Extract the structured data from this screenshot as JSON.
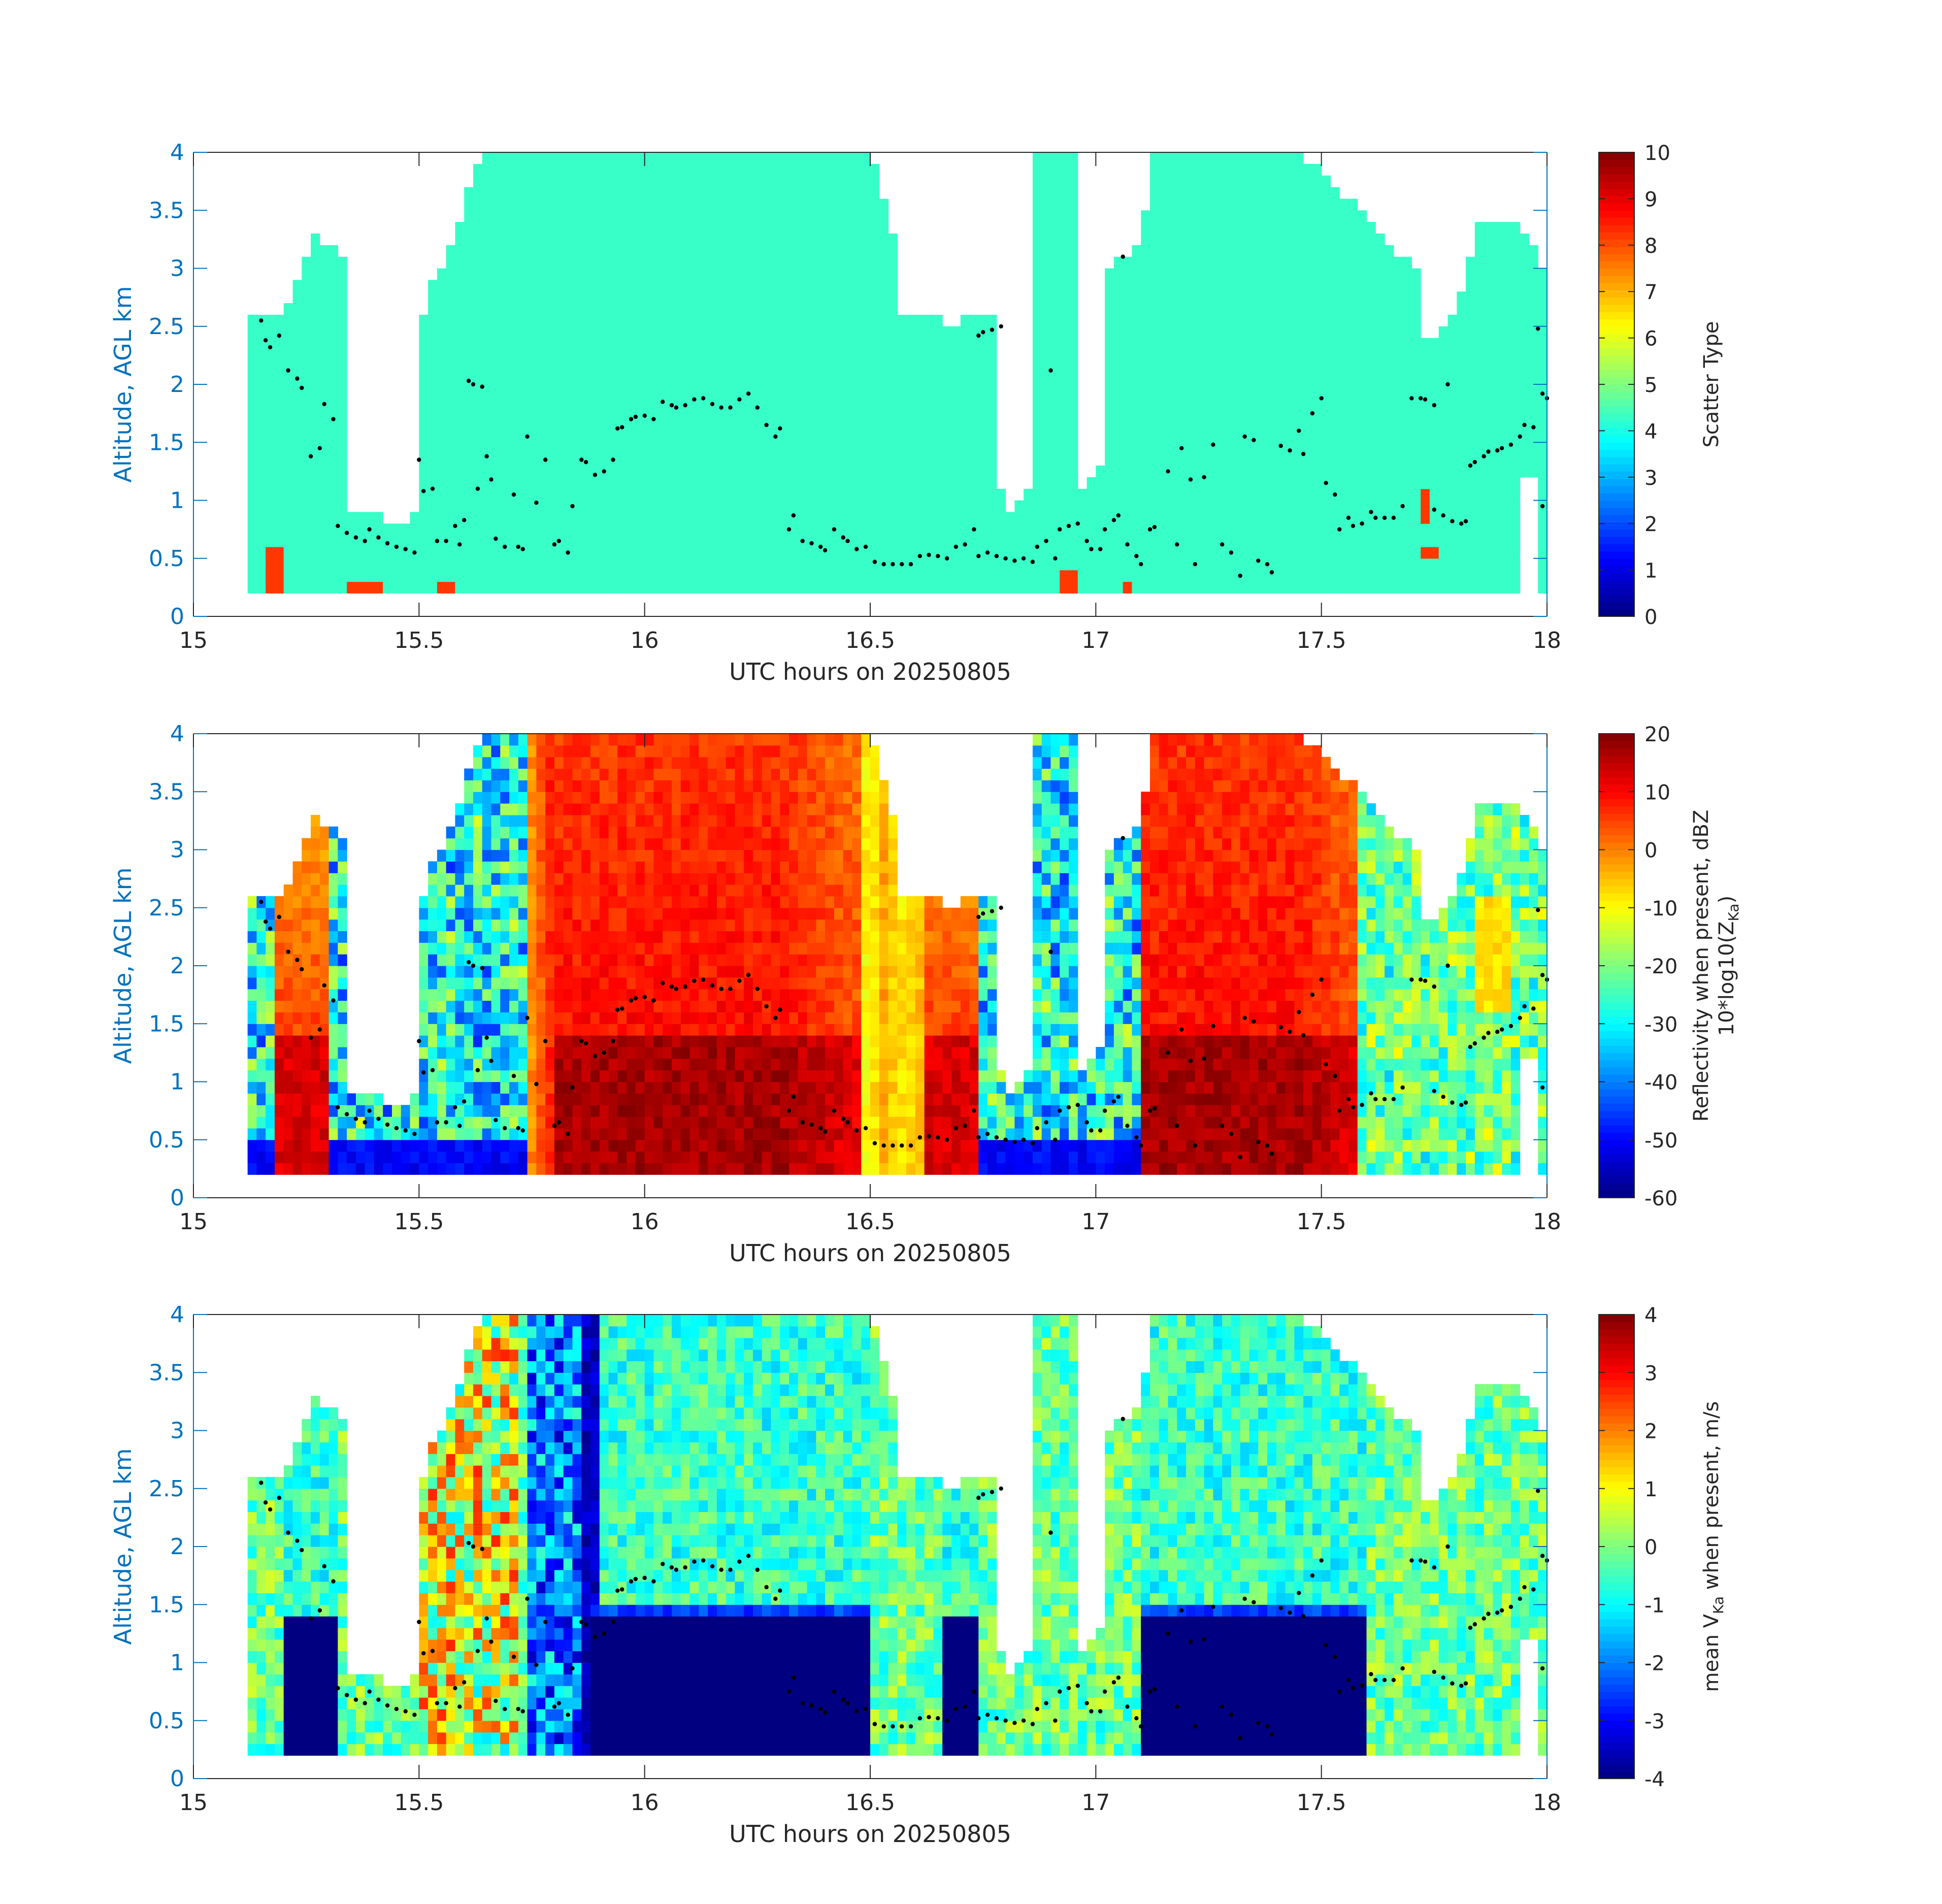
{
  "chart_data": [
    {
      "type": "heatmap",
      "xlabel": "UTC hours on 20250805",
      "ylabel": "Altitude, AGL km",
      "xlim": [
        15,
        18
      ],
      "ylim": [
        0,
        4
      ],
      "xticks": [
        "15",
        "15.5",
        "16",
        "16.5",
        "17",
        "17.5",
        "18"
      ],
      "yticks": [
        "0",
        "0.5",
        "1",
        "1.5",
        "2",
        "2.5",
        "3",
        "3.5",
        "4"
      ],
      "colorbar": {
        "label": "Scatter Type",
        "range": [
          0,
          10
        ],
        "ticks": [
          "0",
          "1",
          "2",
          "3",
          "4",
          "5",
          "6",
          "7",
          "8",
          "9",
          "10"
        ]
      },
      "field": "scatter_type"
    },
    {
      "type": "heatmap",
      "xlabel": "UTC hours on 20250805",
      "ylabel": "Altitude, AGL km",
      "xlim": [
        15,
        18
      ],
      "ylim": [
        0,
        4
      ],
      "xticks": [
        "15",
        "15.5",
        "16",
        "16.5",
        "17",
        "17.5",
        "18"
      ],
      "yticks": [
        "0",
        "0.5",
        "1",
        "1.5",
        "2",
        "2.5",
        "3",
        "3.5",
        "4"
      ],
      "colorbar": {
        "label_line1": "Reflectivity when present, dBZ",
        "label_line2": "10*log10(Z",
        "label_sub": "Ka",
        "label_end": ")",
        "range": [
          -60,
          20
        ],
        "ticks": [
          "-60",
          "-50",
          "-40",
          "-30",
          "-20",
          "-10",
          "0",
          "10",
          "20"
        ]
      },
      "field": "reflectivity"
    },
    {
      "type": "heatmap",
      "xlabel": "UTC hours on 20250805",
      "ylabel": "Altitude, AGL km",
      "xlim": [
        15,
        18
      ],
      "ylim": [
        0,
        4
      ],
      "xticks": [
        "15",
        "15.5",
        "16",
        "16.5",
        "17",
        "17.5",
        "18"
      ],
      "yticks": [
        "0",
        "0.5",
        "1",
        "1.5",
        "2",
        "2.5",
        "3",
        "3.5",
        "4"
      ],
      "colorbar": {
        "label_start": "mean V",
        "label_sub": "Ka",
        "label_end": " when present, m/s",
        "range": [
          -4,
          4
        ],
        "ticks": [
          "-4",
          "-3",
          "-2",
          "-1",
          "0",
          "1",
          "2",
          "3",
          "4"
        ]
      },
      "field": "velocity"
    }
  ],
  "cloud_base_points": [
    [
      15.15,
      2.55
    ],
    [
      15.16,
      2.38
    ],
    [
      15.17,
      2.32
    ],
    [
      15.19,
      2.42
    ],
    [
      15.21,
      2.12
    ],
    [
      15.23,
      2.05
    ],
    [
      15.24,
      1.97
    ],
    [
      15.26,
      1.38
    ],
    [
      15.28,
      1.45
    ],
    [
      15.29,
      1.83
    ],
    [
      15.31,
      1.7
    ],
    [
      15.32,
      0.78
    ],
    [
      15.34,
      0.72
    ],
    [
      15.36,
      0.68
    ],
    [
      15.38,
      0.65
    ],
    [
      15.39,
      0.75
    ],
    [
      15.41,
      0.68
    ],
    [
      15.43,
      0.63
    ],
    [
      15.45,
      0.6
    ],
    [
      15.47,
      0.58
    ],
    [
      15.49,
      0.55
    ],
    [
      15.5,
      1.35
    ],
    [
      15.51,
      1.08
    ],
    [
      15.53,
      1.1
    ],
    [
      15.54,
      0.65
    ],
    [
      15.56,
      0.65
    ],
    [
      15.58,
      0.78
    ],
    [
      15.59,
      0.62
    ],
    [
      15.6,
      0.83
    ],
    [
      15.61,
      2.03
    ],
    [
      15.62,
      2.0
    ],
    [
      15.64,
      1.98
    ],
    [
      15.63,
      1.1
    ],
    [
      15.65,
      1.38
    ],
    [
      15.66,
      1.18
    ],
    [
      15.67,
      0.67
    ],
    [
      15.69,
      0.6
    ],
    [
      15.71,
      1.05
    ],
    [
      15.72,
      0.6
    ],
    [
      15.73,
      0.58
    ],
    [
      15.74,
      1.55
    ],
    [
      15.76,
      0.98
    ],
    [
      15.78,
      1.35
    ],
    [
      15.8,
      0.62
    ],
    [
      15.81,
      0.65
    ],
    [
      15.83,
      0.55
    ],
    [
      15.84,
      0.95
    ],
    [
      15.86,
      1.35
    ],
    [
      15.87,
      1.33
    ],
    [
      15.89,
      1.22
    ],
    [
      15.91,
      1.25
    ],
    [
      15.93,
      1.35
    ],
    [
      15.94,
      1.62
    ],
    [
      15.95,
      1.63
    ],
    [
      15.97,
      1.7
    ],
    [
      15.98,
      1.72
    ],
    [
      16.0,
      1.73
    ],
    [
      16.02,
      1.7
    ],
    [
      16.04,
      1.85
    ],
    [
      16.06,
      1.82
    ],
    [
      16.07,
      1.8
    ],
    [
      16.09,
      1.82
    ],
    [
      16.11,
      1.87
    ],
    [
      16.13,
      1.88
    ],
    [
      16.15,
      1.83
    ],
    [
      16.17,
      1.8
    ],
    [
      16.19,
      1.8
    ],
    [
      16.21,
      1.87
    ],
    [
      16.23,
      1.92
    ],
    [
      16.25,
      1.8
    ],
    [
      16.27,
      1.65
    ],
    [
      16.29,
      1.55
    ],
    [
      16.3,
      1.62
    ],
    [
      16.32,
      0.75
    ],
    [
      16.33,
      0.87
    ],
    [
      16.35,
      0.65
    ],
    [
      16.37,
      0.63
    ],
    [
      16.39,
      0.6
    ],
    [
      16.4,
      0.57
    ],
    [
      16.42,
      0.75
    ],
    [
      16.44,
      0.68
    ],
    [
      16.45,
      0.65
    ],
    [
      16.47,
      0.58
    ],
    [
      16.49,
      0.6
    ],
    [
      16.51,
      0.47
    ],
    [
      16.53,
      0.45
    ],
    [
      16.55,
      0.45
    ],
    [
      16.57,
      0.45
    ],
    [
      16.59,
      0.45
    ],
    [
      16.61,
      0.52
    ],
    [
      16.63,
      0.53
    ],
    [
      16.65,
      0.52
    ],
    [
      16.67,
      0.5
    ],
    [
      16.69,
      0.6
    ],
    [
      16.71,
      0.62
    ],
    [
      16.73,
      0.75
    ],
    [
      16.74,
      2.42
    ],
    [
      16.75,
      2.45
    ],
    [
      16.77,
      2.47
    ],
    [
      16.79,
      2.5
    ],
    [
      16.74,
      0.52
    ],
    [
      16.76,
      0.55
    ],
    [
      16.78,
      0.52
    ],
    [
      16.8,
      0.5
    ],
    [
      16.82,
      0.48
    ],
    [
      16.84,
      0.5
    ],
    [
      16.86,
      0.47
    ],
    [
      16.87,
      0.6
    ],
    [
      16.89,
      0.65
    ],
    [
      16.9,
      2.12
    ],
    [
      16.91,
      0.5
    ],
    [
      16.92,
      0.75
    ],
    [
      16.94,
      0.78
    ],
    [
      16.96,
      0.8
    ],
    [
      16.98,
      0.65
    ],
    [
      16.99,
      0.58
    ],
    [
      17.01,
      0.58
    ],
    [
      17.02,
      0.75
    ],
    [
      17.04,
      0.83
    ],
    [
      17.05,
      0.87
    ],
    [
      17.06,
      3.1
    ],
    [
      17.07,
      0.62
    ],
    [
      17.09,
      0.52
    ],
    [
      17.1,
      0.45
    ],
    [
      17.12,
      0.75
    ],
    [
      17.13,
      0.77
    ],
    [
      17.16,
      1.25
    ],
    [
      17.18,
      0.62
    ],
    [
      17.19,
      1.45
    ],
    [
      17.21,
      1.18
    ],
    [
      17.22,
      0.45
    ],
    [
      17.24,
      1.2
    ],
    [
      17.26,
      1.48
    ],
    [
      17.28,
      0.62
    ],
    [
      17.3,
      0.55
    ],
    [
      17.32,
      0.35
    ],
    [
      17.33,
      1.55
    ],
    [
      17.35,
      1.52
    ],
    [
      17.36,
      0.48
    ],
    [
      17.38,
      0.45
    ],
    [
      17.39,
      0.38
    ],
    [
      17.41,
      1.47
    ],
    [
      17.43,
      1.43
    ],
    [
      17.45,
      1.6
    ],
    [
      17.46,
      1.4
    ],
    [
      17.48,
      1.75
    ],
    [
      17.5,
      1.88
    ],
    [
      17.51,
      1.15
    ],
    [
      17.53,
      1.05
    ],
    [
      17.54,
      0.75
    ],
    [
      17.56,
      0.85
    ],
    [
      17.57,
      0.78
    ],
    [
      17.59,
      0.8
    ],
    [
      17.61,
      0.9
    ],
    [
      17.62,
      0.85
    ],
    [
      17.64,
      0.85
    ],
    [
      17.66,
      0.85
    ],
    [
      17.68,
      0.95
    ],
    [
      17.7,
      1.88
    ],
    [
      17.72,
      1.88
    ],
    [
      17.73,
      1.87
    ],
    [
      17.75,
      1.82
    ],
    [
      17.75,
      0.92
    ],
    [
      17.77,
      0.87
    ],
    [
      17.78,
      2.0
    ],
    [
      17.79,
      0.82
    ],
    [
      17.81,
      0.8
    ],
    [
      17.82,
      0.82
    ],
    [
      17.83,
      1.3
    ],
    [
      17.84,
      1.33
    ],
    [
      17.86,
      1.38
    ],
    [
      17.87,
      1.42
    ],
    [
      17.89,
      1.43
    ],
    [
      17.9,
      1.45
    ],
    [
      17.92,
      1.48
    ],
    [
      17.94,
      1.55
    ],
    [
      17.95,
      1.65
    ],
    [
      17.97,
      1.63
    ],
    [
      17.98,
      2.48
    ],
    [
      17.99,
      1.92
    ],
    [
      18.0,
      1.88
    ],
    [
      17.99,
      0.95
    ]
  ]
}
